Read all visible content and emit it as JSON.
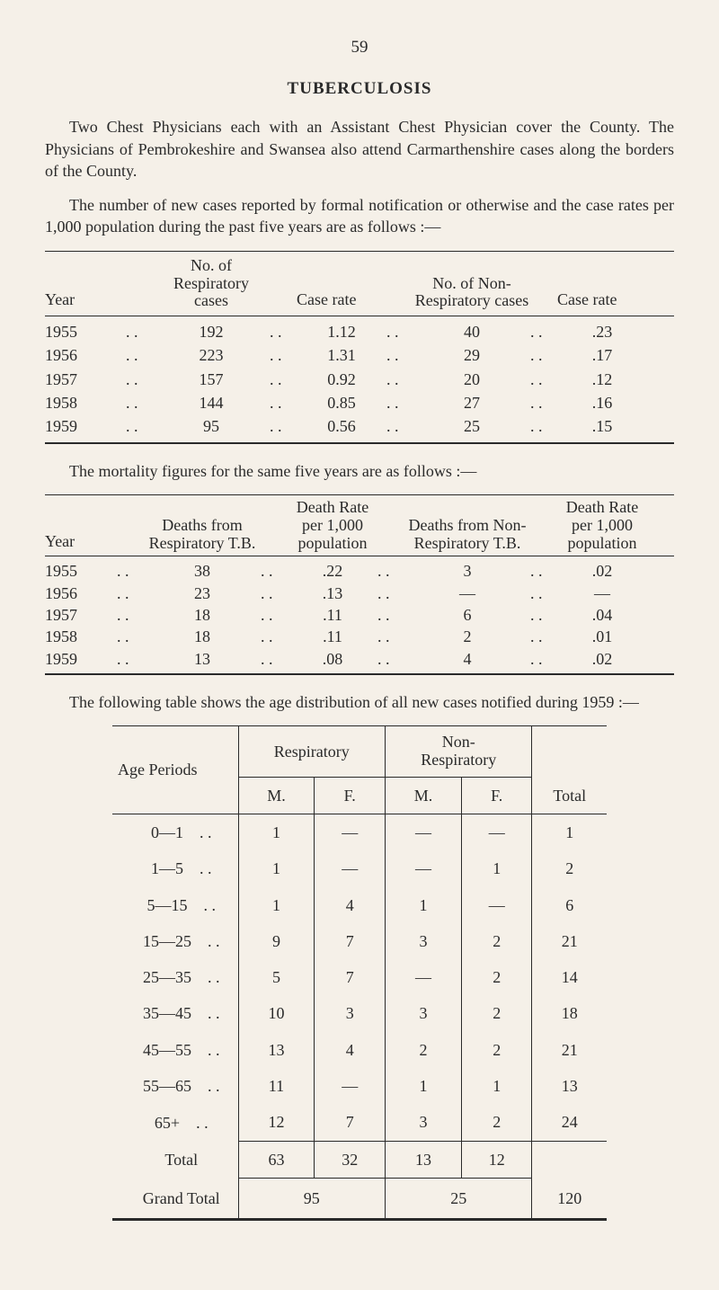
{
  "page_number": "59",
  "title": "TUBERCULOSIS",
  "para1": "Two Chest Physicians each with an Assistant Chest Physician cover the County. The Physicians of Pembrokeshire and Swansea also attend Carmarthenshire cases along the borders of the County.",
  "para2": "The number of new cases reported by formal notification or otherwise and the case rates per 1,000 population during the past five years are as follows :—",
  "table1": {
    "headers": {
      "year": "Year",
      "resp_cases": "No. of Respiratory\ncases",
      "case_rate1": "Case rate",
      "non_resp": "No. of Non-\nRespiratory cases",
      "case_rate2": "Case rate"
    },
    "rows": [
      {
        "year": "1955",
        "resp": "192",
        "rate1": "1.12",
        "nonresp": "40",
        "rate2": ".23"
      },
      {
        "year": "1956",
        "resp": "223",
        "rate1": "1.31",
        "nonresp": "29",
        "rate2": ".17"
      },
      {
        "year": "1957",
        "resp": "157",
        "rate1": "0.92",
        "nonresp": "20",
        "rate2": ".12"
      },
      {
        "year": "1958",
        "resp": "144",
        "rate1": "0.85",
        "nonresp": "27",
        "rate2": ".16"
      },
      {
        "year": "1959",
        "resp": "95",
        "rate1": "0.56",
        "nonresp": "25",
        "rate2": ".15"
      }
    ]
  },
  "para3": "The mortality figures for the same five years are as follows :—",
  "table2": {
    "headers": {
      "year": "Year",
      "deaths_resp": "Deaths from\nRespiratory T.B.",
      "rate_resp": "Death Rate\nper 1,000\npopulation",
      "deaths_non": "Deaths from Non-\nRespiratory T.B.",
      "rate_non": "Death Rate\nper 1,000\npopulation"
    },
    "rows": [
      {
        "year": "1955",
        "d1": "38",
        "r1": ".22",
        "d2": "3",
        "r2": ".02"
      },
      {
        "year": "1956",
        "d1": "23",
        "r1": ".13",
        "d2": "—",
        "r2": "—"
      },
      {
        "year": "1957",
        "d1": "18",
        "r1": ".11",
        "d2": "6",
        "r2": ".04"
      },
      {
        "year": "1958",
        "d1": "18",
        "r1": ".11",
        "d2": "2",
        "r2": ".01"
      },
      {
        "year": "1959",
        "d1": "13",
        "r1": ".08",
        "d2": "4",
        "r2": ".02"
      }
    ]
  },
  "para4": "The following table shows the age distribution of all new cases notified during 1959 :—",
  "table3": {
    "headers": {
      "age": "Age Periods",
      "resp": "Respiratory",
      "nonresp": "Non-\nRespiratory",
      "m": "M.",
      "f": "F.",
      "total": "Total"
    },
    "rows": [
      {
        "age": "0—1",
        "rm": "1",
        "rf": "—",
        "nm": "—",
        "nf": "—",
        "t": "1"
      },
      {
        "age": "1—5",
        "rm": "1",
        "rf": "—",
        "nm": "—",
        "nf": "1",
        "t": "2"
      },
      {
        "age": "5—15",
        "rm": "1",
        "rf": "4",
        "nm": "1",
        "nf": "—",
        "t": "6"
      },
      {
        "age": "15—25",
        "rm": "9",
        "rf": "7",
        "nm": "3",
        "nf": "2",
        "t": "21"
      },
      {
        "age": "25—35",
        "rm": "5",
        "rf": "7",
        "nm": "—",
        "nf": "2",
        "t": "14"
      },
      {
        "age": "35—45",
        "rm": "10",
        "rf": "3",
        "nm": "3",
        "nf": "2",
        "t": "18"
      },
      {
        "age": "45—55",
        "rm": "13",
        "rf": "4",
        "nm": "2",
        "nf": "2",
        "t": "21"
      },
      {
        "age": "55—65",
        "rm": "11",
        "rf": "—",
        "nm": "1",
        "nf": "1",
        "t": "13"
      },
      {
        "age": "65+",
        "rm": "12",
        "rf": "7",
        "nm": "3",
        "nf": "2",
        "t": "24"
      }
    ],
    "total_row": {
      "label": "Total",
      "rm": "63",
      "rf": "32",
      "nm": "13",
      "nf": "12"
    },
    "grand_row": {
      "label": "Grand Total",
      "resp": "95",
      "nonresp": "25",
      "total": "120"
    }
  },
  "dots": ". ."
}
